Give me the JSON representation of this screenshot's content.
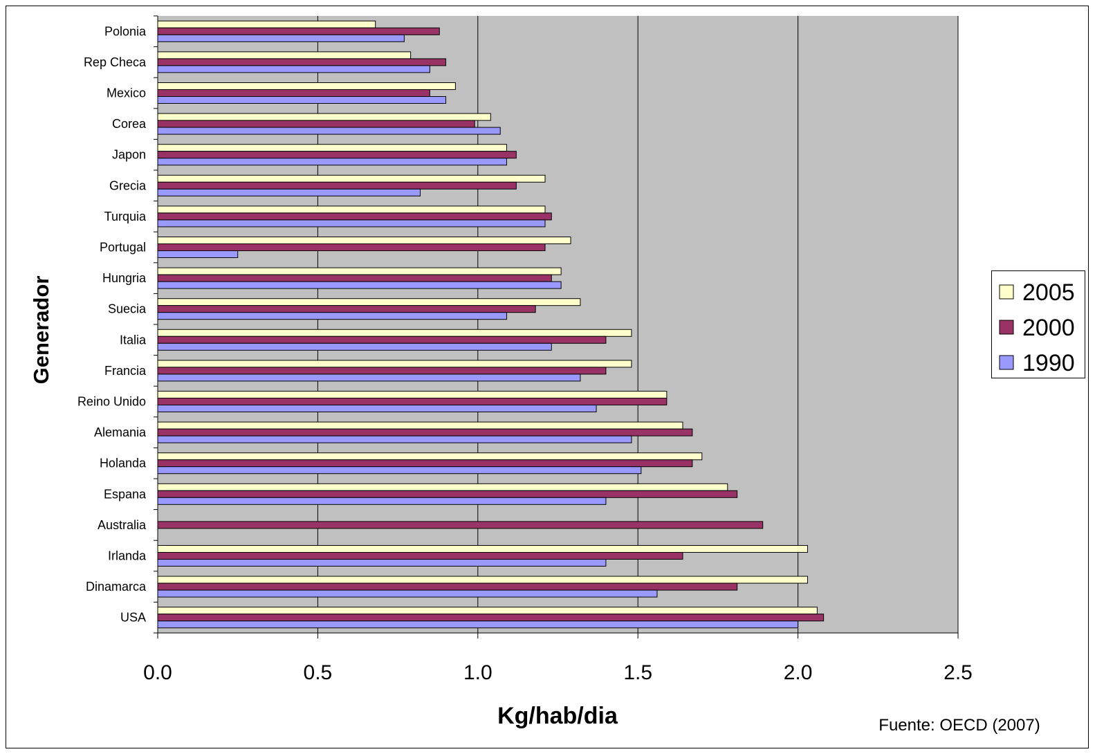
{
  "chart_data": {
    "type": "bar",
    "orientation": "horizontal",
    "title": "",
    "xlabel": "Kg/hab/dia",
    "ylabel": "Generador",
    "xlim": [
      0,
      2.5
    ],
    "xticks": [
      "0.0",
      "0.5",
      "1.0",
      "1.5",
      "2.0",
      "2.5"
    ],
    "grid": "vertical major gridlines at 0.5 intervals",
    "legend_position": "right",
    "categories": [
      "Polonia",
      "Rep Checa",
      "Mexico",
      "Corea",
      "Japon",
      "Grecia",
      "Turquia",
      "Portugal",
      "Hungria",
      "Suecia",
      "Italia",
      "Francia",
      "Reino Unido",
      "Alemania",
      "Holanda",
      "Espana",
      "Australia",
      "Irlanda",
      "Dinamarca",
      "USA"
    ],
    "series": [
      {
        "name": "2005",
        "color": "#FFFFCC",
        "values": [
          0.68,
          0.79,
          0.93,
          1.04,
          1.09,
          1.21,
          1.21,
          1.29,
          1.26,
          1.32,
          1.48,
          1.48,
          1.59,
          1.64,
          1.7,
          1.78,
          0,
          2.03,
          2.03,
          2.06
        ]
      },
      {
        "name": "2000",
        "color": "#993366",
        "values": [
          0.88,
          0.9,
          0.85,
          0.99,
          1.12,
          1.12,
          1.23,
          1.21,
          1.23,
          1.18,
          1.4,
          1.4,
          1.59,
          1.67,
          1.67,
          1.81,
          1.89,
          1.64,
          1.81,
          2.08
        ]
      },
      {
        "name": "1990",
        "color": "#9999FF",
        "values": [
          0.77,
          0.85,
          0.9,
          1.07,
          1.09,
          0.82,
          1.21,
          0.25,
          1.26,
          1.09,
          1.23,
          1.32,
          1.37,
          1.48,
          1.51,
          1.4,
          0,
          1.4,
          1.56,
          2.0
        ]
      }
    ],
    "plot_background": "#C0C0C0",
    "source_note": "Fuente: OECD (2007)"
  }
}
